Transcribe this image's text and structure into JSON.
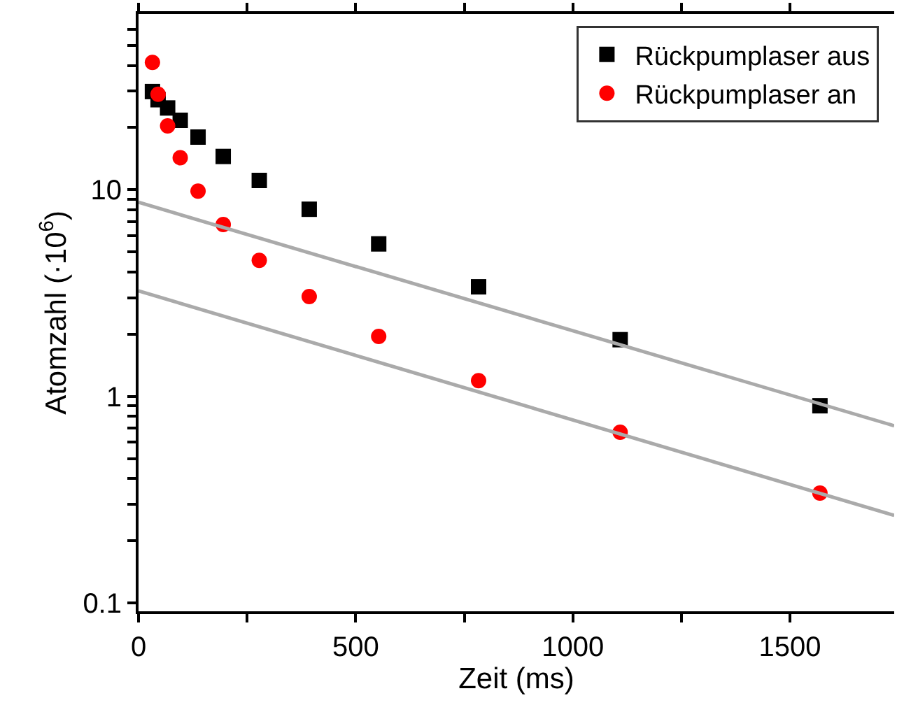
{
  "chart_data": {
    "type": "scatter",
    "xlabel": "Zeit (ms)",
    "ylabel": "Atomzahl (·10$^{6}$)",
    "log": "y",
    "legend": "top right",
    "xlim": [
      0,
      1740
    ],
    "xticks": [
      0,
      {
        "value": 250,
        "label": null
      },
      500,
      {
        "value": 750,
        "label": null
      },
      1000,
      {
        "value": 1250,
        "label": null
      },
      1500
    ],
    "ylim": [
      0.091,
      71
    ],
    "yticks": [
      0.1,
      {
        "value": 0.2,
        "label": null
      },
      {
        "value": 0.3,
        "label": null
      },
      {
        "value": 0.4,
        "label": null
      },
      {
        "value": 0.5,
        "label": null
      },
      {
        "value": 0.6,
        "label": null
      },
      {
        "value": 0.7,
        "label": null
      },
      {
        "value": 0.8,
        "label": null
      },
      {
        "value": 0.9,
        "label": null
      },
      1,
      {
        "value": 2,
        "label": null
      },
      {
        "value": 3,
        "label": null
      },
      {
        "value": 4,
        "label": null
      },
      {
        "value": 5,
        "label": null
      },
      {
        "value": 6,
        "label": null
      },
      {
        "value": 7,
        "label": null
      },
      {
        "value": 8,
        "label": null
      },
      {
        "value": 9,
        "label": null
      },
      10,
      {
        "value": 20,
        "label": null
      },
      {
        "value": 30,
        "label": null
      },
      {
        "value": 40,
        "label": null
      },
      {
        "value": 50,
        "label": null
      },
      {
        "value": 60,
        "label": null
      }
    ],
    "series": [
      {
        "name": "Rückpumplaser aus",
        "color": "#000000",
        "marker": "square",
        "x": [
          32,
          45,
          67,
          96,
          137,
          195,
          278,
          393,
          553,
          783,
          1109,
          1569
        ],
        "values": [
          29.9,
          27.3,
          24.9,
          21.7,
          18.0,
          14.5,
          11.1,
          8.05,
          5.47,
          3.39,
          1.88,
          0.9
        ]
      },
      {
        "name": "Rückpumplaser an",
        "color": "#ff0000",
        "marker": "circle",
        "x": [
          32,
          45,
          67,
          96,
          137,
          195,
          278,
          393,
          553,
          783,
          1109,
          1569
        ],
        "values": [
          41.4,
          29.0,
          20.4,
          14.3,
          9.85,
          6.79,
          4.55,
          3.04,
          1.95,
          1.19,
          0.67,
          0.34
        ]
      },
      {
        "type": "line",
        "color": "#aaaaaa",
        "x": [
          0,
          1740
        ],
        "values": [
          8.7,
          0.72
        ]
      },
      {
        "type": "line",
        "color": "#aaaaaa",
        "x": [
          0,
          1740
        ],
        "values": [
          3.24,
          0.265
        ]
      }
    ]
  }
}
